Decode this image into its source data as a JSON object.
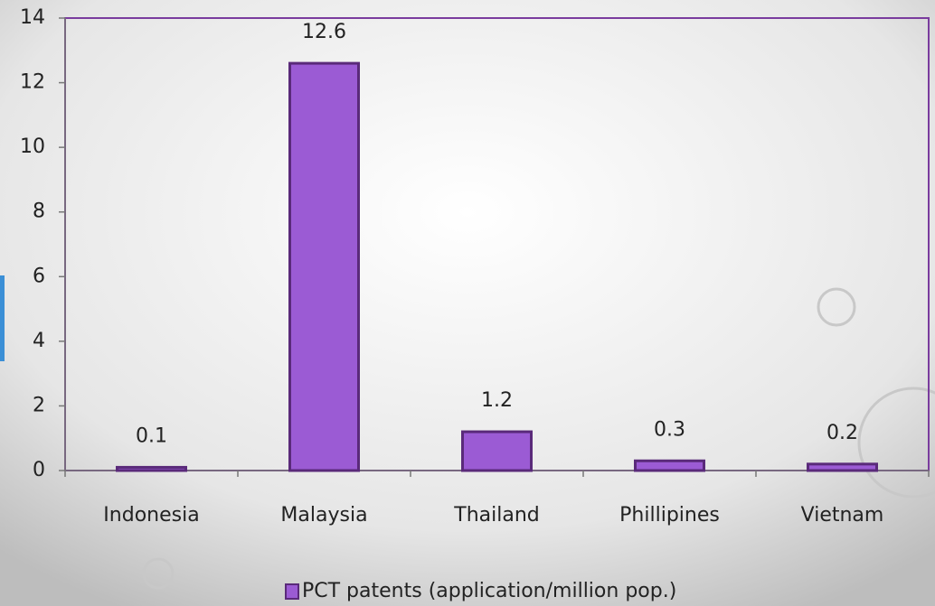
{
  "chart_data": {
    "type": "bar",
    "categories": [
      "Indonesia",
      "Malaysia",
      "Thailand",
      "Phillipines",
      "Vietnam"
    ],
    "series": [
      {
        "name": "PCT patents (application/million pop.)",
        "color": "#9b5bd4",
        "values": [
          0.1,
          12.6,
          1.2,
          0.3,
          0.2
        ]
      }
    ],
    "ylim": [
      0,
      14
    ],
    "yticks": [
      0,
      2,
      4,
      6,
      8,
      10,
      12,
      14
    ],
    "grid": false,
    "legend": "bottom"
  }
}
